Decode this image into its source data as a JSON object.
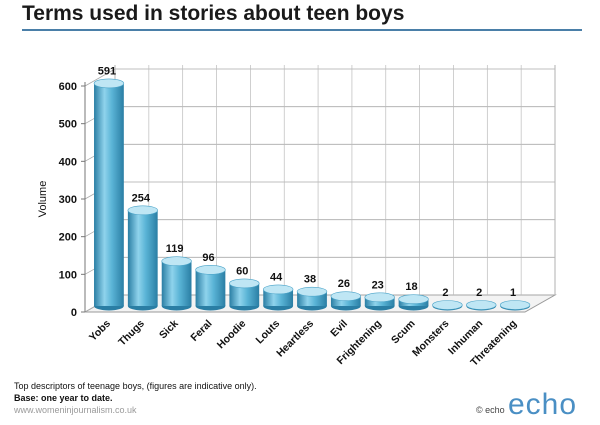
{
  "page": {
    "title": "Terms used in stories about teen boys",
    "notes": [
      "Top descriptors of teenage boys, (figures are indicative only).",
      "Base: one year to date.",
      "www.womeninjournalism.co.uk"
    ],
    "copyright": "© echo",
    "logo_text": "echo"
  },
  "colors": {
    "bar_main": "#5ab4d6",
    "bar_dark": "#2a7ea4",
    "bar_light": "#bfe6f4",
    "title_rule": "#4a7fa8",
    "logo": "#4a8fc4"
  },
  "chart_data": {
    "type": "bar",
    "title": "Terms used in stories about teen boys",
    "xlabel": "",
    "ylabel": "Volume",
    "ylim": [
      0,
      600
    ],
    "yticks": [
      0,
      100,
      200,
      300,
      400,
      500,
      600
    ],
    "grid": true,
    "categories": [
      "Yobs",
      "Thugs",
      "Sick",
      "Feral",
      "Hoodie",
      "Louts",
      "Heartless",
      "Evil",
      "Frightening",
      "Scum",
      "Monsters",
      "Inhuman",
      "Threatening"
    ],
    "values": [
      591,
      254,
      119,
      96,
      60,
      44,
      38,
      26,
      23,
      18,
      2,
      2,
      1
    ]
  }
}
